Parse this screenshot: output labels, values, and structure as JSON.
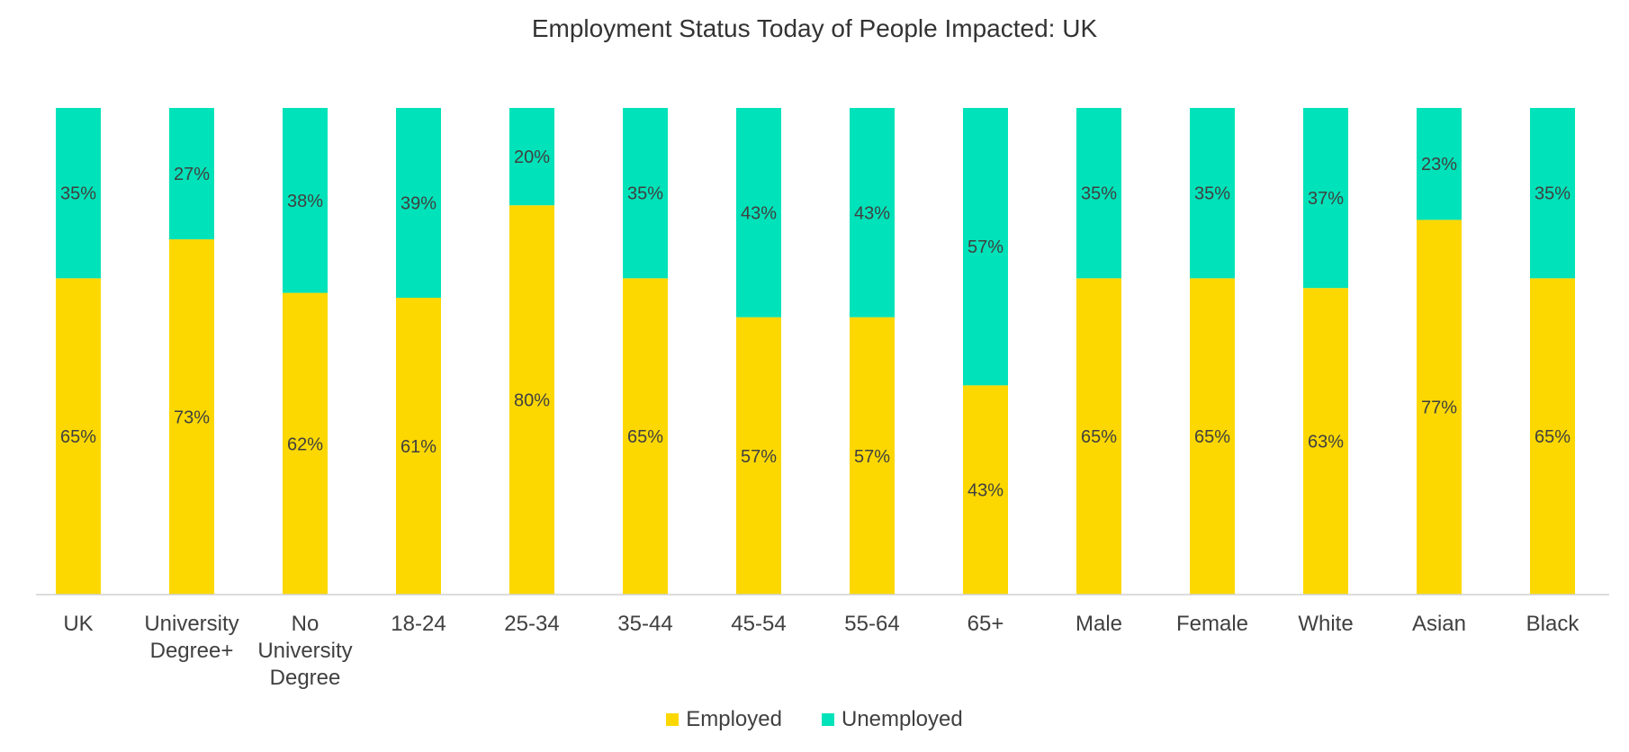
{
  "chart_data": {
    "type": "bar",
    "stacked": true,
    "title": "Employment Status Today of People Impacted: UK",
    "categories": [
      [
        "UK"
      ],
      [
        "University",
        "Degree+"
      ],
      [
        "No",
        "University",
        "Degree"
      ],
      [
        "18-24"
      ],
      [
        "25-34"
      ],
      [
        "35-44"
      ],
      [
        "45-54"
      ],
      [
        "55-64"
      ],
      [
        "65+"
      ],
      [
        "Male"
      ],
      [
        "Female"
      ],
      [
        "White"
      ],
      [
        "Asian"
      ],
      [
        "Black"
      ]
    ],
    "series": [
      {
        "name": "Employed",
        "color": "#FCD800",
        "values": [
          65,
          73,
          62,
          61,
          80,
          65,
          57,
          57,
          43,
          65,
          65,
          63,
          77,
          65
        ]
      },
      {
        "name": "Unemployed",
        "color": "#00E2B9",
        "values": [
          35,
          27,
          38,
          39,
          20,
          35,
          43,
          43,
          57,
          35,
          35,
          37,
          23,
          35
        ]
      }
    ],
    "value_suffix": "%",
    "ylim": [
      0,
      100
    ],
    "grid": false,
    "legend_position": "bottom"
  }
}
